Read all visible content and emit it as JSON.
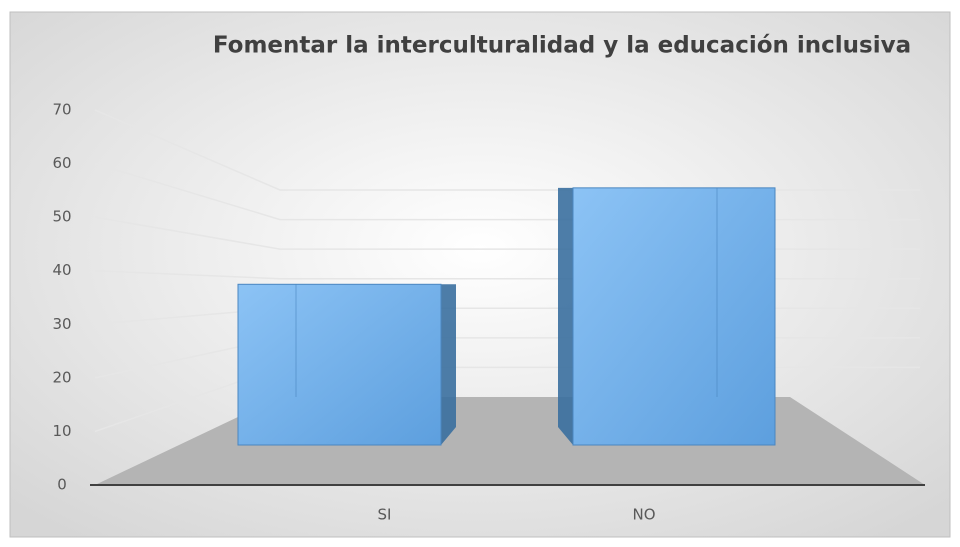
{
  "chart_data": {
    "type": "bar3d",
    "title": "Fomentar la interculturalidad y la educación  inclusiva",
    "categories": [
      "SI",
      "NO"
    ],
    "values": [
      30,
      48
    ],
    "color": "#5b9bd5",
    "ylim": [
      0,
      70
    ],
    "yticks": [
      0,
      10,
      20,
      30,
      40,
      50,
      60,
      70
    ],
    "grid": true
  }
}
